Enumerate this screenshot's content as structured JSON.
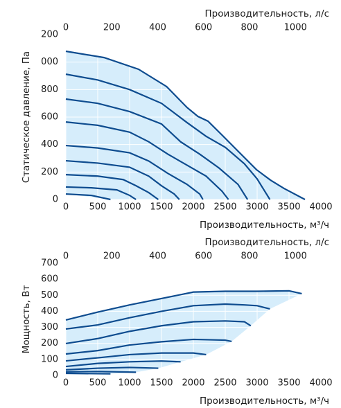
{
  "chart_data": [
    {
      "type": "line",
      "x_label": "Производительность, м³/ч",
      "x2_label": "Производительность, л/с",
      "y_label": "Статическое давление, Па",
      "color": "#0e4c8f",
      "fill": "#d6edfb",
      "xlim": [
        0,
        4000
      ],
      "xticks": [
        0,
        500,
        1000,
        1500,
        2000,
        2500,
        3000,
        3500,
        4000
      ],
      "x2lim": [
        0,
        1111.1
      ],
      "x2ticks": [
        0,
        200,
        400,
        600,
        800,
        1000
      ],
      "ylim": [
        0,
        1200
      ],
      "yticks": [
        0,
        200,
        400,
        600,
        800,
        {
          "value": 1000,
          "label": "000"
        },
        {
          "value": 1200,
          "label": "200"
        }
      ],
      "series": [
        {
          "x": [
            0,
            600,
            1140,
            1580,
            1900,
            2070,
            2230,
            2450,
            2720,
            2990,
            3210,
            3420,
            3750
          ],
          "values": [
            1079,
            1033,
            948,
            822,
            670,
            605,
            570,
            469,
            343,
            217,
            141,
            81,
            0
          ]
        },
        {
          "x": [
            0,
            500,
            1000,
            1500,
            1900,
            2200,
            2500,
            2800,
            3000,
            3200
          ],
          "values": [
            912,
            870,
            800,
            700,
            560,
            460,
            380,
            260,
            150,
            0
          ]
        },
        {
          "x": [
            0,
            500,
            1000,
            1500,
            1800,
            2100,
            2400,
            2700,
            2850
          ],
          "values": [
            731,
            700,
            640,
            550,
            420,
            330,
            230,
            110,
            0
          ]
        },
        {
          "x": [
            0,
            500,
            1000,
            1300,
            1600,
            1900,
            2200,
            2450,
            2550
          ],
          "values": [
            564,
            540,
            490,
            420,
            330,
            250,
            170,
            60,
            0
          ]
        },
        {
          "x": [
            0,
            500,
            1000,
            1300,
            1600,
            1900,
            2100,
            2150
          ],
          "values": [
            393,
            375,
            340,
            280,
            190,
            110,
            40,
            0
          ]
        },
        {
          "x": [
            0,
            500,
            1000,
            1300,
            1500,
            1700,
            1780
          ],
          "values": [
            282,
            265,
            235,
            170,
            100,
            40,
            0
          ]
        },
        {
          "x": [
            0,
            500,
            900,
            1100,
            1300,
            1450
          ],
          "values": [
            181,
            170,
            145,
            100,
            50,
            0
          ]
        },
        {
          "x": [
            0,
            400,
            800,
            1000,
            1100
          ],
          "values": [
            91,
            85,
            70,
            30,
            0
          ]
        },
        {
          "x": [
            0,
            400,
            700
          ],
          "values": [
            40,
            30,
            0
          ]
        }
      ]
    },
    {
      "type": "line",
      "x_label": "Производительность, м³/ч",
      "x2_label": "Производительность, л/с",
      "y_label": "Мощность, Вт",
      "color": "#0e4c8f",
      "fill": "#d6edfb",
      "xlim": [
        0,
        4000
      ],
      "xticks": [
        0,
        500,
        1000,
        1500,
        2000,
        2500,
        3000,
        3500,
        4000
      ],
      "x2lim": [
        0,
        1111.1
      ],
      "x2ticks": [
        0,
        200,
        400,
        600,
        800,
        1000
      ],
      "ylim": [
        0,
        700
      ],
      "yticks": [
        0,
        100,
        200,
        300,
        400,
        500,
        600,
        700
      ],
      "series": [
        {
          "x": [
            0,
            500,
            1000,
            1500,
            2000,
            2500,
            3000,
            3500,
            3700
          ],
          "values": [
            346,
            395,
            440,
            480,
            520,
            525,
            525,
            528,
            510
          ]
        },
        {
          "x": [
            0,
            500,
            1000,
            1500,
            2000,
            2500,
            2800,
            3000,
            3200
          ],
          "values": [
            290,
            315,
            360,
            400,
            435,
            445,
            440,
            435,
            415
          ]
        },
        {
          "x": [
            0,
            500,
            1000,
            1500,
            2000,
            2500,
            2800,
            2900
          ],
          "values": [
            199,
            230,
            275,
            310,
            335,
            340,
            335,
            310
          ]
        },
        {
          "x": [
            0,
            500,
            1000,
            1500,
            2000,
            2500,
            2600
          ],
          "values": [
            134,
            155,
            190,
            210,
            225,
            220,
            212
          ]
        },
        {
          "x": [
            0,
            500,
            1000,
            1500,
            2000,
            2200
          ],
          "values": [
            91,
            110,
            130,
            140,
            140,
            130
          ]
        },
        {
          "x": [
            0,
            500,
            1000,
            1500,
            1800
          ],
          "values": [
            56,
            75,
            85,
            90,
            85
          ]
        },
        {
          "x": [
            0,
            500,
            1000,
            1450
          ],
          "values": [
            35,
            45,
            50,
            45
          ]
        },
        {
          "x": [
            0,
            500,
            1100
          ],
          "values": [
            22,
            25,
            20
          ]
        },
        {
          "x": [
            0,
            700
          ],
          "values": [
            13,
            10
          ]
        }
      ]
    }
  ]
}
